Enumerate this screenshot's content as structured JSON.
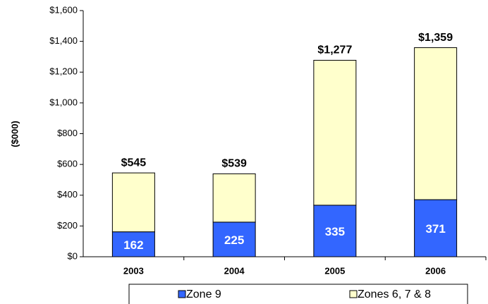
{
  "chart_data": {
    "type": "stacked-bar",
    "y_label": "($000)",
    "categories": [
      "2003",
      "2004",
      "2005",
      "2006"
    ],
    "series": [
      {
        "name": "Zone 9",
        "color": "#3366ff",
        "values": [
          162,
          225,
          335,
          371
        ]
      },
      {
        "name": "Zones 6, 7 & 8",
        "color": "#ffffcc",
        "values": [
          383,
          314,
          942,
          988
        ]
      }
    ],
    "totals": [
      545,
      539,
      1277,
      1359
    ],
    "total_labels": [
      "$545",
      "$539",
      "$1,277",
      "$1,359"
    ],
    "ylim": [
      0,
      1600
    ],
    "yticks": [
      {
        "value": 0,
        "label": "$0"
      },
      {
        "value": 200,
        "label": "$200"
      },
      {
        "value": 400,
        "label": "$400"
      },
      {
        "value": 600,
        "label": "$600"
      },
      {
        "value": 800,
        "label": "$800"
      },
      {
        "value": 1000,
        "label": "$1,000"
      },
      {
        "value": 1200,
        "label": "$1,200"
      },
      {
        "value": 1400,
        "label": "$1,400"
      },
      {
        "value": 1600,
        "label": "$1,600"
      }
    ],
    "legend": "bottom"
  }
}
